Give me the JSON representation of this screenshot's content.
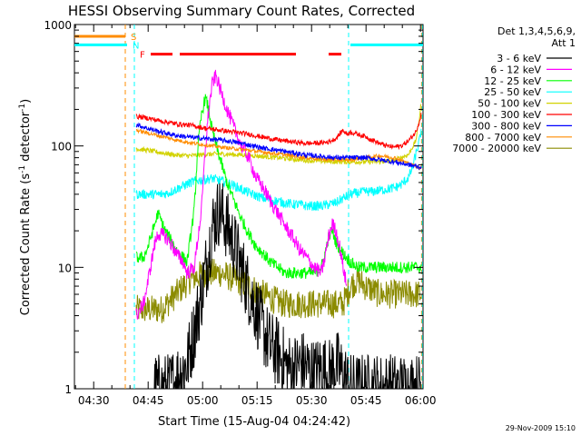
{
  "chart_data": {
    "type": "line",
    "title": "HESSI Observing Summary Count Rates, Corrected",
    "xlabel": "Start Time (15-Aug-04 04:24:42)",
    "ylabel_main": "Corrected Count Rate (s",
    "ylabel_sup1": "-1",
    "ylabel_mid": " detector",
    "ylabel_sup2": "-1",
    "ylabel_end": ")",
    "timestamp": "29-Nov-2009 15:10",
    "x_unit": "minutes since 04:24:42",
    "xlim": [
      0,
      96
    ],
    "ylim": [
      1,
      1000
    ],
    "yscale": "log",
    "x_ticks": [
      {
        "label": "04:30",
        "x": 5.3
      },
      {
        "label": "04:45",
        "x": 20.3
      },
      {
        "label": "05:00",
        "x": 35.3
      },
      {
        "label": "05:15",
        "x": 50.3
      },
      {
        "label": "05:30",
        "x": 65.3
      },
      {
        "label": "05:45",
        "x": 80.3
      },
      {
        "label": "06:00",
        "x": 95.3
      }
    ],
    "y_ticks": [
      {
        "label": "1",
        "y": 1
      },
      {
        "label": "10",
        "y": 10
      },
      {
        "label": "100",
        "y": 100
      },
      {
        "label": "1000",
        "y": 1000
      }
    ],
    "legend": {
      "header1": "Det 1,3,4,5,6,9,",
      "header2": "Att 1",
      "entries": [
        {
          "label": "3 - 6 keV",
          "color": "#000000"
        },
        {
          "label": "6 - 12 keV",
          "color": "#ff00ff"
        },
        {
          "label": "12 - 25 keV",
          "color": "#00ff00"
        },
        {
          "label": "25 - 50 keV",
          "color": "#00ffff"
        },
        {
          "label": "50 - 100 keV",
          "color": "#d2d200"
        },
        {
          "label": "100 - 300 keV",
          "color": "#ff0000"
        },
        {
          "label": "300 - 800 keV",
          "color": "#0000ff"
        },
        {
          "label": "800 - 7000 keV",
          "color": "#ff8c00"
        },
        {
          "label": "7000 - 20000 keV",
          "color": "#8b8b00"
        }
      ]
    },
    "flags": [
      {
        "label": "S",
        "color": "#ff8c00",
        "segments": [
          [
            0,
            14
          ]
        ],
        "y": 800
      },
      {
        "label": "N",
        "color": "#00ffff",
        "segments": [
          [
            0,
            14.5
          ],
          [
            76,
            96
          ]
        ],
        "y": 680
      },
      {
        "label": "F",
        "color": "#ff0000",
        "segments": [
          [
            21,
            27
          ],
          [
            29,
            61
          ],
          [
            70,
            73.5
          ]
        ],
        "y": 570
      }
    ],
    "vlines": [
      {
        "x": 14,
        "color": "#ff8c00"
      },
      {
        "x": 16.5,
        "color": "#00ffff"
      },
      {
        "x": 75.5,
        "color": "#00ffff"
      },
      {
        "x": 95.6,
        "color": "#ff8c00"
      },
      {
        "x": 95.8,
        "color": "#00ffff"
      }
    ],
    "series": [
      {
        "name": "3 - 6 keV",
        "color": "#000000",
        "noise": 0.3,
        "x": [
          22,
          26,
          28,
          31,
          33,
          35,
          37,
          38,
          40,
          42,
          44,
          46,
          48,
          50,
          52,
          54,
          56,
          58,
          60,
          62,
          64,
          66,
          68,
          70,
          72,
          74,
          76,
          78,
          80,
          82,
          84,
          86,
          88,
          90,
          92,
          94,
          95.5
        ],
        "y": [
          1.0,
          1.0,
          1.2,
          1.6,
          3.0,
          6.0,
          14,
          22,
          30,
          22,
          15,
          10,
          6.5,
          4.5,
          3.0,
          2.2,
          2.0,
          1.6,
          1.4,
          1.6,
          1.5,
          1.3,
          1.5,
          1.3,
          1.6,
          1.3,
          1.0,
          1.0,
          1.0,
          1.0,
          1.0,
          1.0,
          1.0,
          1.0,
          1.0,
          1.0,
          1.0
        ]
      },
      {
        "name": "6 - 12 keV",
        "color": "#ff00ff",
        "noise": 0.06,
        "x": [
          17,
          19,
          20,
          22,
          23,
          25,
          27,
          28,
          30,
          31,
          33,
          35,
          36,
          37,
          38,
          39,
          40,
          42,
          44,
          46,
          48,
          50,
          52,
          54,
          56,
          58,
          60,
          62,
          64,
          66,
          68,
          69,
          70,
          71,
          72,
          73,
          74,
          75
        ],
        "y": [
          4,
          5,
          7,
          15,
          19,
          18,
          15,
          13,
          11,
          9,
          10,
          30,
          90,
          200,
          330,
          380,
          300,
          200,
          140,
          100,
          80,
          55,
          45,
          35,
          28,
          22,
          18,
          14,
          12,
          10,
          9,
          12,
          18,
          23,
          20,
          15,
          10,
          7
        ]
      },
      {
        "name": "12 - 25 keV",
        "color": "#00ff00",
        "noise": 0.05,
        "x": [
          17,
          19,
          20,
          22,
          23,
          25,
          27,
          28,
          30,
          31,
          33,
          34,
          35,
          36,
          37,
          38,
          40,
          42,
          44,
          46,
          48,
          50,
          52,
          54,
          56,
          58,
          60,
          62,
          64,
          66,
          68,
          69,
          70,
          71,
          72,
          74,
          76,
          78,
          80,
          82,
          84,
          86,
          88,
          90,
          92,
          94,
          95.5
        ],
        "y": [
          12,
          12,
          14,
          22,
          28,
          20,
          16,
          14,
          12,
          11,
          30,
          100,
          180,
          250,
          200,
          130,
          80,
          50,
          35,
          25,
          19,
          15,
          13,
          11,
          10,
          9,
          9,
          9,
          9,
          9,
          10,
          13,
          18,
          20,
          16,
          13,
          11,
          10,
          10,
          10,
          10,
          10,
          10,
          10,
          10,
          10,
          10
        ]
      },
      {
        "name": "25 - 50 keV",
        "color": "#00ffff",
        "noise": 0.04,
        "x": [
          17,
          20,
          22,
          24,
          26,
          28,
          30,
          32,
          34,
          36,
          38,
          40,
          42,
          44,
          46,
          48,
          50,
          52,
          54,
          56,
          58,
          60,
          62,
          64,
          66,
          68,
          70,
          72,
          74,
          76,
          78,
          80,
          82,
          84,
          86,
          88,
          90,
          92,
          93,
          94,
          95,
          95.6
        ],
        "y": [
          40,
          40,
          40,
          40,
          41,
          44,
          47,
          50,
          52,
          53,
          54,
          52,
          50,
          47,
          44,
          41,
          39,
          37,
          36,
          35,
          34,
          33,
          33,
          32,
          32,
          32,
          33,
          34,
          37,
          40,
          41,
          42,
          42,
          43,
          44,
          45,
          48,
          55,
          65,
          85,
          110,
          140
        ]
      },
      {
        "name": "50 - 100 keV",
        "color": "#d2d200",
        "noise": 0.02,
        "x": [
          17,
          20,
          24,
          28,
          32,
          36,
          40,
          44,
          48,
          52,
          56,
          60,
          64,
          68,
          72,
          76,
          80,
          84,
          88,
          92,
          94,
          95,
          95.6
        ],
        "y": [
          95,
          92,
          88,
          84,
          83,
          85,
          86,
          85,
          84,
          82,
          80,
          78,
          76,
          75,
          74,
          74,
          74,
          74,
          76,
          85,
          110,
          170,
          240
        ]
      },
      {
        "name": "100 - 300 keV",
        "color": "#ff0000",
        "noise": 0.02,
        "x": [
          17,
          20,
          24,
          28,
          32,
          36,
          40,
          44,
          48,
          52,
          56,
          60,
          64,
          68,
          70,
          72,
          74,
          75,
          76,
          78,
          80,
          82,
          84,
          86,
          88,
          90,
          92,
          94,
          95,
          95.6
        ],
        "y": [
          175,
          170,
          160,
          152,
          148,
          140,
          135,
          130,
          125,
          118,
          112,
          108,
          105,
          106,
          108,
          115,
          135,
          125,
          130,
          125,
          120,
          112,
          105,
          100,
          98,
          100,
          110,
          130,
          160,
          190
        ]
      },
      {
        "name": "300 - 800 keV",
        "color": "#0000ff",
        "noise": 0.02,
        "x": [
          17,
          20,
          24,
          28,
          32,
          36,
          40,
          44,
          48,
          52,
          56,
          60,
          64,
          68,
          72,
          76,
          80,
          84,
          88,
          92,
          94,
          95,
          95.6
        ],
        "y": [
          150,
          140,
          130,
          122,
          118,
          115,
          112,
          108,
          102,
          96,
          92,
          88,
          84,
          82,
          80,
          80,
          80,
          77,
          74,
          70,
          68,
          67,
          68
        ]
      },
      {
        "name": "800 - 7000 keV",
        "color": "#ff8c00",
        "noise": 0.015,
        "x": [
          17,
          20,
          24,
          28,
          32,
          36,
          40,
          44,
          48,
          52,
          56,
          60,
          64,
          68,
          72,
          76,
          80,
          84,
          88,
          92,
          94,
          95,
          95.6
        ],
        "y": [
          135,
          128,
          120,
          112,
          106,
          102,
          98,
          95,
          92,
          89,
          86,
          83,
          80,
          78,
          77,
          77,
          80,
          83,
          80,
          72,
          68,
          66,
          67
        ]
      },
      {
        "name": "7000 - 20000 keV",
        "color": "#8b8b00",
        "noise": 0.12,
        "x": [
          17,
          20,
          24,
          26,
          28,
          30,
          32,
          34,
          36,
          38,
          40,
          42,
          44,
          46,
          48,
          50,
          52,
          54,
          56,
          58,
          60,
          62,
          64,
          66,
          68,
          70,
          72,
          74,
          76,
          78,
          80,
          82,
          84,
          86,
          88,
          90,
          92,
          94,
          95.5
        ],
        "y": [
          4.5,
          4.5,
          4.5,
          5.2,
          6.0,
          7.0,
          8.0,
          8.5,
          9.0,
          9.0,
          9.0,
          8.5,
          8.0,
          7.5,
          7.0,
          6.5,
          6.0,
          5.6,
          5.2,
          5.0,
          5.0,
          5.0,
          5.0,
          5.0,
          5.0,
          5.0,
          5.0,
          5.0,
          7.0,
          8.0,
          7.0,
          6.5,
          6.0,
          6.0,
          6.0,
          6.0,
          6.0,
          6.0,
          6.0
        ]
      }
    ]
  }
}
